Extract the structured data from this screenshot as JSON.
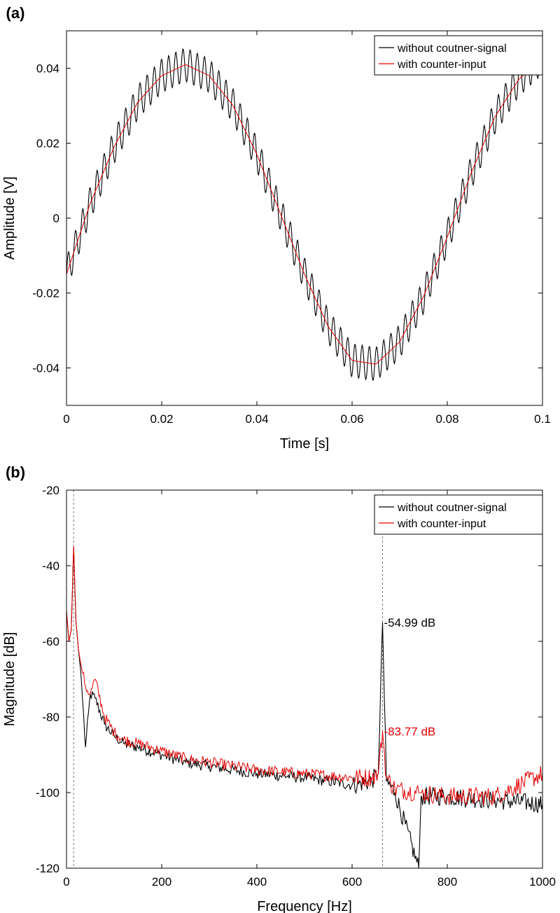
{
  "colors": {
    "series_black": "#000000",
    "series_red": "#e60000",
    "axis": "#000000",
    "marker_line": "#777777"
  },
  "chart_data": [
    {
      "panel_label": "(a)",
      "type": "line",
      "xlabel": "Time [s]",
      "ylabel": "Amplitude [V]",
      "xlim": [
        0,
        0.1
      ],
      "ylim": [
        -0.05,
        0.05
      ],
      "xticks": [
        0,
        0.02,
        0.04,
        0.06,
        0.08,
        0.1
      ],
      "xtick_labels": [
        "0",
        "0.02",
        "0.04",
        "0.06",
        "0.08",
        "0.1"
      ],
      "yticks": [
        -0.04,
        -0.02,
        0,
        0.02,
        0.04
      ],
      "ytick_labels": [
        "-0.04",
        "-0.02",
        "0",
        "0.02",
        "0.04"
      ],
      "legend": [
        "without coutner-signal",
        "with counter-input"
      ],
      "legend_position": "top-right",
      "series": [
        {
          "name": "without coutner-signal",
          "color": "#000000",
          "x": [
            0,
            0.005,
            0.01,
            0.015,
            0.02,
            0.025,
            0.03,
            0.035,
            0.04,
            0.045,
            0.05,
            0.055,
            0.06,
            0.065,
            0.07,
            0.075,
            0.08,
            0.085,
            0.09,
            0.095,
            0.1
          ],
          "y": [
            -0.015,
            0.004,
            0.019,
            0.031,
            0.038,
            0.041,
            0.038,
            0.03,
            0.017,
            0.001,
            -0.015,
            -0.029,
            -0.038,
            -0.039,
            -0.033,
            -0.021,
            -0.005,
            0.012,
            0.027,
            0.037,
            0.043
          ],
          "ripple_amplitude": 0.0045,
          "ripple_frequency_hz": 664
        },
        {
          "name": "with counter-input",
          "color": "#e60000",
          "x": [
            0,
            0.005,
            0.01,
            0.015,
            0.02,
            0.025,
            0.03,
            0.035,
            0.04,
            0.045,
            0.05,
            0.055,
            0.06,
            0.065,
            0.07,
            0.075,
            0.08,
            0.085,
            0.09,
            0.095,
            0.1
          ],
          "y": [
            -0.015,
            0.004,
            0.019,
            0.031,
            0.038,
            0.041,
            0.038,
            0.03,
            0.017,
            0.001,
            -0.015,
            -0.029,
            -0.038,
            -0.039,
            -0.033,
            -0.021,
            -0.005,
            0.012,
            0.027,
            0.037,
            0.043
          ]
        }
      ]
    },
    {
      "panel_label": "(b)",
      "type": "line",
      "xlabel": "Frequency [Hz]",
      "ylabel": "Magnitude [dB]",
      "xlim": [
        0,
        1000
      ],
      "ylim": [
        -120,
        -20
      ],
      "xticks": [
        0,
        200,
        400,
        600,
        800,
        1000
      ],
      "xtick_labels": [
        "0",
        "200",
        "400",
        "600",
        "800",
        "1000"
      ],
      "yticks": [
        -120,
        -100,
        -80,
        -60,
        -40,
        -20
      ],
      "ytick_labels": [
        "-120",
        "-100",
        "-80",
        "-60",
        "-40",
        "-20"
      ],
      "legend": [
        "without coutner-signal",
        "with counter-input"
      ],
      "legend_position": "top-right",
      "vlines": [
        15,
        664
      ],
      "annotations": [
        {
          "text": "-54.99 dB",
          "x": 664,
          "y": -54.99,
          "color": "#000000"
        },
        {
          "text": "-83.77 dB",
          "x": 664,
          "y": -83.77,
          "color": "#e60000"
        }
      ],
      "series": [
        {
          "name": "without coutner-signal",
          "color": "#000000",
          "x": [
            0,
            5,
            10,
            15,
            20,
            25,
            30,
            40,
            50,
            60,
            80,
            100,
            120,
            150,
            200,
            250,
            300,
            400,
            500,
            600,
            640,
            655,
            664,
            672,
            690,
            740,
            745,
            800,
            900,
            1000
          ],
          "y": [
            -52,
            -60,
            -57,
            -35,
            -55,
            -62,
            -68,
            -88,
            -74,
            -75,
            -82,
            -85,
            -87,
            -88,
            -90,
            -92,
            -93,
            -95,
            -96,
            -98,
            -97,
            -95,
            -55,
            -97,
            -100,
            -120,
            -101,
            -101,
            -102,
            -103
          ]
        },
        {
          "name": "with counter-input",
          "color": "#e60000",
          "x": [
            0,
            5,
            10,
            15,
            20,
            25,
            30,
            40,
            50,
            60,
            80,
            100,
            120,
            150,
            200,
            250,
            300,
            400,
            500,
            600,
            640,
            655,
            664,
            672,
            690,
            740,
            745,
            800,
            900,
            1000
          ],
          "y": [
            -52,
            -60,
            -57,
            -35,
            -55,
            -62,
            -66,
            -72,
            -74,
            -70,
            -80,
            -84,
            -86,
            -87,
            -89,
            -91,
            -92,
            -94,
            -95,
            -96,
            -96,
            -95,
            -83.77,
            -96,
            -99,
            -100,
            -100,
            -101,
            -101,
            -95
          ]
        }
      ]
    }
  ]
}
